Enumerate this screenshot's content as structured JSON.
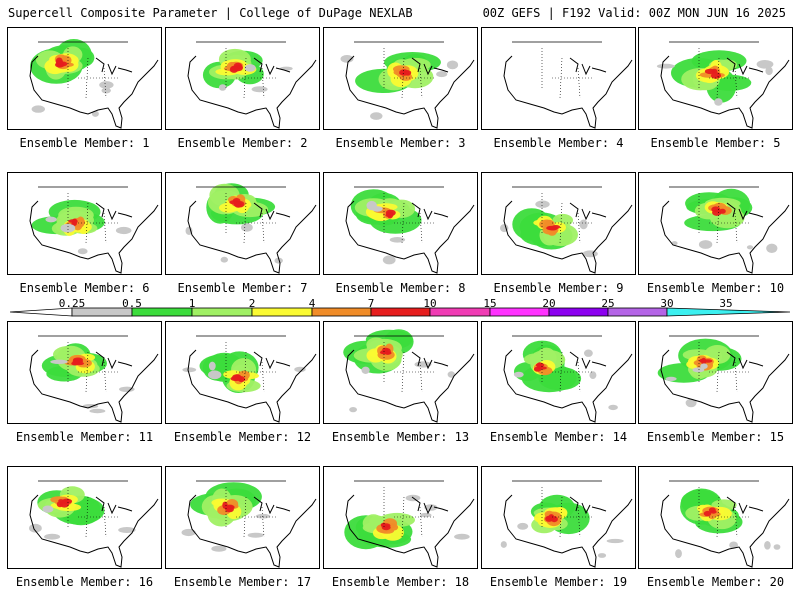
{
  "header": {
    "left_title": "Supercell Composite Parameter | College of DuPage NEXLAB",
    "right_title": "00Z GEFS | F192 Valid: 00Z MON JUN 16 2025"
  },
  "colorbar": {
    "labels": [
      "0.25",
      "0.5",
      "1",
      "2",
      "4",
      "7",
      "10",
      "15",
      "20",
      "25",
      "30",
      "35"
    ],
    "colors": [
      "#c8c8c8",
      "#3cdc3c",
      "#a0f064",
      "#fafa32",
      "#f08c28",
      "#e61e1e",
      "#f03cb4",
      "#ff32ff",
      "#8c00f0",
      "#b464e6",
      "#3cf0f0"
    ]
  },
  "panels": [
    {
      "label": "Ensemble Member: 1"
    },
    {
      "label": "Ensemble Member: 2"
    },
    {
      "label": "Ensemble Member: 3"
    },
    {
      "label": "Ensemble Member: 4"
    },
    {
      "label": "Ensemble Member: 5"
    },
    {
      "label": "Ensemble Member: 6"
    },
    {
      "label": "Ensemble Member: 7"
    },
    {
      "label": "Ensemble Member: 8"
    },
    {
      "label": "Ensemble Member: 9"
    },
    {
      "label": "Ensemble Member: 10"
    },
    {
      "label": "Ensemble Member: 11"
    },
    {
      "label": "Ensemble Member: 12"
    },
    {
      "label": "Ensemble Member: 13"
    },
    {
      "label": "Ensemble Member: 14"
    },
    {
      "label": "Ensemble Member: 15"
    },
    {
      "label": "Ensemble Member: 16"
    },
    {
      "label": "Ensemble Member: 17"
    },
    {
      "label": "Ensemble Member: 18"
    },
    {
      "label": "Ensemble Member: 19"
    },
    {
      "label": "Ensemble Member: 20"
    }
  ]
}
